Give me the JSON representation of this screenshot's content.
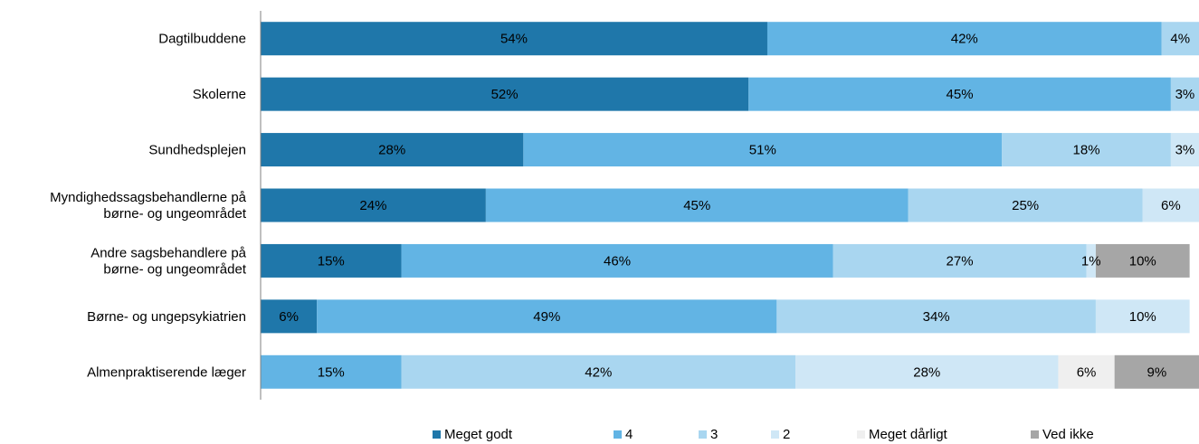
{
  "chart_data": {
    "type": "bar",
    "orientation": "horizontal",
    "stacked": true,
    "title": "",
    "xlabel": "",
    "ylabel": "",
    "xlim": [
      0,
      100
    ],
    "grid": false,
    "legend_position": "bottom",
    "categories": [
      [
        "Dagtilbuddene"
      ],
      [
        "Skolerne"
      ],
      [
        "Sundhedsplejen"
      ],
      [
        "Myndighedssagsbehandlerne på",
        "børne- og ungeområdet"
      ],
      [
        "Andre sagsbehandlere på",
        "børne- og ungeområdet"
      ],
      [
        "Børne- og ungepsykiatrien"
      ],
      [
        "Almenpraktiserende læger"
      ]
    ],
    "series": [
      {
        "name": "Meget godt",
        "color": "#1f77aa",
        "values": [
          54,
          52,
          28,
          24,
          15,
          6,
          0
        ]
      },
      {
        "name": "4",
        "color": "#62b4e4",
        "values": [
          42,
          45,
          51,
          45,
          46,
          49,
          15
        ]
      },
      {
        "name": "3",
        "color": "#a9d6f0",
        "values": [
          4,
          3,
          18,
          25,
          27,
          34,
          42
        ]
      },
      {
        "name": "2",
        "color": "#cfe7f6",
        "values": [
          0,
          0,
          3,
          6,
          1,
          10,
          28
        ]
      },
      {
        "name": "Meget dårligt",
        "color": "#efefef",
        "values": [
          0,
          0,
          0,
          0,
          0,
          0,
          6
        ]
      },
      {
        "name": "Ved ikke",
        "color": "#a6a6a6",
        "values": [
          0,
          0,
          0,
          0,
          10,
          0,
          9
        ]
      }
    ],
    "value_suffix": "%"
  }
}
